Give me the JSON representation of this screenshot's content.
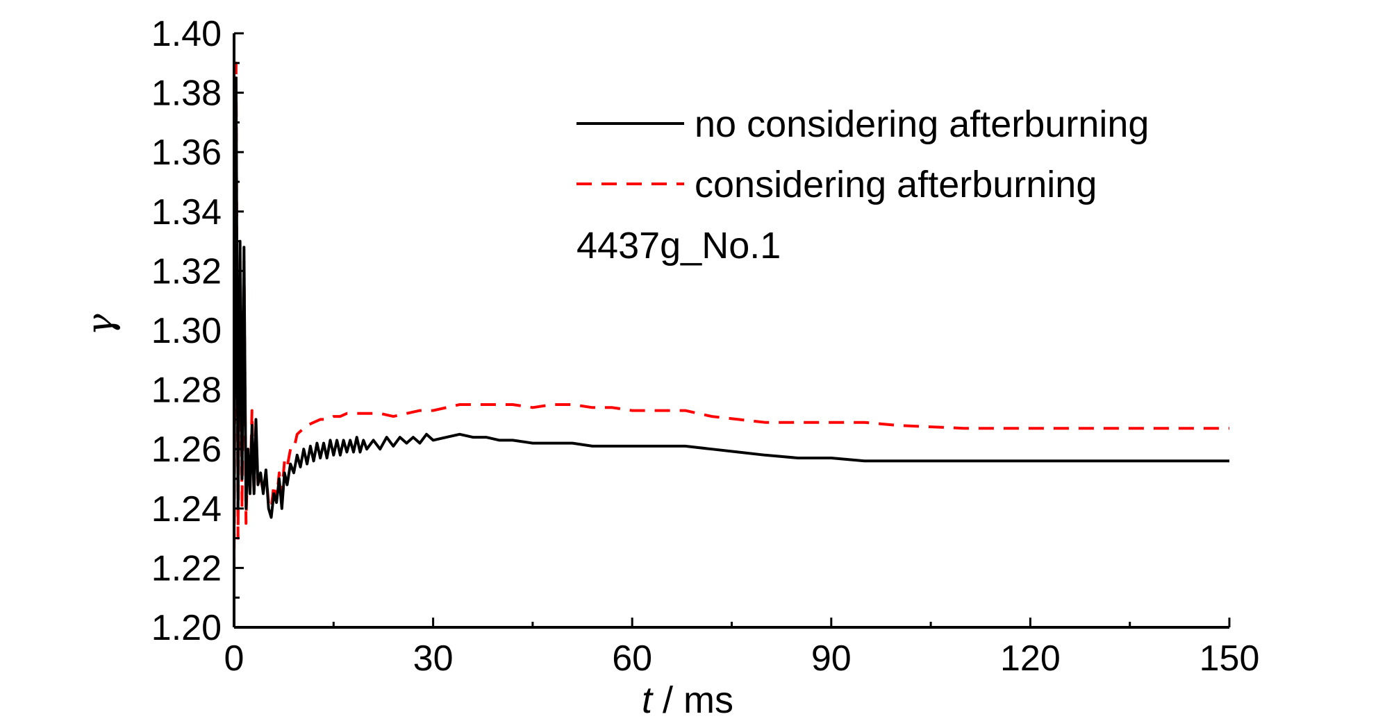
{
  "chart_data": {
    "type": "line",
    "xlabel_var": "t",
    "xlabel_unit": " / ms",
    "ylabel": "γ",
    "xlim": [
      0,
      150
    ],
    "ylim": [
      1.2,
      1.4
    ],
    "x_ticks": [
      0,
      30,
      60,
      90,
      120,
      150
    ],
    "x_tick_labels": [
      "0",
      "30",
      "60",
      "90",
      "120",
      "150"
    ],
    "y_ticks": [
      1.2,
      1.22,
      1.24,
      1.26,
      1.28,
      1.3,
      1.32,
      1.34,
      1.36,
      1.38,
      1.4
    ],
    "y_tick_labels": [
      "1.20",
      "1.22",
      "1.24",
      "1.26",
      "1.28",
      "1.30",
      "1.32",
      "1.34",
      "1.36",
      "1.38",
      "1.40"
    ],
    "grid": false,
    "legend_position": "top-right",
    "annotation": "4437g_No.1",
    "series": [
      {
        "name": "no considering afterburning",
        "color": "#000000",
        "dash": "solid",
        "x": [
          0,
          0.3,
          0.6,
          0.9,
          1.2,
          1.5,
          1.8,
          2.1,
          2.4,
          2.7,
          3.0,
          3.3,
          3.6,
          4.0,
          4.4,
          4.8,
          5.2,
          5.6,
          6.0,
          6.4,
          6.8,
          7.2,
          7.6,
          8.0,
          8.5,
          9.0,
          9.5,
          10,
          10.5,
          11,
          11.5,
          12,
          12.5,
          13,
          13.5,
          14,
          14.5,
          15,
          15.5,
          16,
          16.5,
          17,
          17.5,
          18,
          18.5,
          19,
          19.5,
          20,
          21,
          22,
          23,
          24,
          25,
          26,
          27,
          28,
          29,
          30,
          32,
          34,
          36,
          38,
          40,
          42,
          45,
          48,
          51,
          54,
          57,
          60,
          64,
          68,
          72,
          76,
          80,
          85,
          90,
          95,
          100,
          110,
          120,
          130,
          140,
          150
        ],
        "y": [
          1.23,
          1.385,
          1.24,
          1.33,
          1.25,
          1.328,
          1.24,
          1.26,
          1.245,
          1.268,
          1.245,
          1.27,
          1.248,
          1.252,
          1.245,
          1.253,
          1.24,
          1.237,
          1.245,
          1.242,
          1.25,
          1.24,
          1.252,
          1.248,
          1.255,
          1.252,
          1.258,
          1.254,
          1.26,
          1.255,
          1.261,
          1.256,
          1.262,
          1.257,
          1.262,
          1.257,
          1.263,
          1.258,
          1.263,
          1.258,
          1.263,
          1.259,
          1.263,
          1.259,
          1.264,
          1.259,
          1.263,
          1.26,
          1.263,
          1.26,
          1.264,
          1.261,
          1.264,
          1.262,
          1.264,
          1.262,
          1.265,
          1.263,
          1.264,
          1.265,
          1.264,
          1.264,
          1.263,
          1.263,
          1.262,
          1.262,
          1.262,
          1.261,
          1.261,
          1.261,
          1.261,
          1.261,
          1.26,
          1.259,
          1.258,
          1.257,
          1.257,
          1.256,
          1.256,
          1.256,
          1.256,
          1.256,
          1.256,
          1.256
        ]
      },
      {
        "name": "considering afterburning",
        "color": "#ff0000",
        "dash": "dashed",
        "x": [
          0,
          0.3,
          0.6,
          0.9,
          1.2,
          1.5,
          1.8,
          2.1,
          2.4,
          2.7,
          3.0,
          3.3,
          3.6,
          4.0,
          4.4,
          4.8,
          5.2,
          5.6,
          6.0,
          6.4,
          6.8,
          7.2,
          7.6,
          8.0,
          8.5,
          9.0,
          9.5,
          10,
          11,
          12,
          13,
          14,
          15,
          16,
          17,
          18,
          19,
          20,
          22,
          24,
          26,
          28,
          30,
          32,
          34,
          36,
          38,
          40,
          42,
          45,
          48,
          51,
          54,
          57,
          60,
          64,
          68,
          72,
          76,
          80,
          85,
          90,
          95,
          100,
          110,
          120,
          130,
          140,
          150
        ],
        "y": [
          1.218,
          1.39,
          1.23,
          1.32,
          1.24,
          1.325,
          1.235,
          1.26,
          1.245,
          1.273,
          1.245,
          1.265,
          1.25,
          1.25,
          1.246,
          1.252,
          1.242,
          1.24,
          1.248,
          1.243,
          1.252,
          1.245,
          1.256,
          1.254,
          1.26,
          1.26,
          1.265,
          1.266,
          1.268,
          1.269,
          1.27,
          1.27,
          1.271,
          1.271,
          1.272,
          1.272,
          1.272,
          1.272,
          1.272,
          1.271,
          1.272,
          1.273,
          1.273,
          1.274,
          1.275,
          1.275,
          1.275,
          1.275,
          1.275,
          1.274,
          1.275,
          1.275,
          1.274,
          1.274,
          1.273,
          1.273,
          1.273,
          1.271,
          1.27,
          1.269,
          1.269,
          1.269,
          1.269,
          1.268,
          1.267,
          1.267,
          1.267,
          1.267,
          1.267
        ]
      }
    ]
  }
}
